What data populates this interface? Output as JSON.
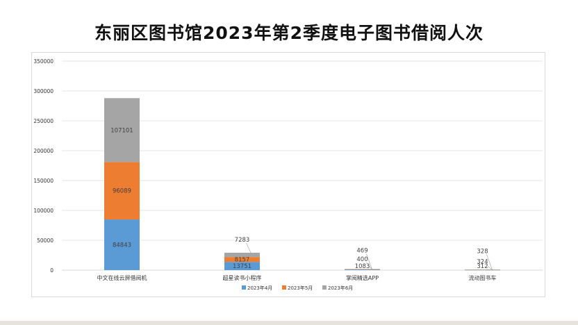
{
  "title": "东丽区图书馆2023年第2季度电子图书借阅人次",
  "chart_data": {
    "type": "bar",
    "stacked": true,
    "categories": [
      "中文在线云屏借阅机",
      "超星读书小程序",
      "掌阅精选APP",
      "流动图书车"
    ],
    "series": [
      {
        "name": "2023年4月",
        "color": "#5b9bd5",
        "values": [
          84843,
          13751,
          1083,
          312
        ]
      },
      {
        "name": "2023年5月",
        "color": "#ed7d31",
        "values": [
          96089,
          8157,
          400,
          324
        ]
      },
      {
        "name": "2023年6月",
        "color": "#a5a5a5",
        "values": [
          107101,
          7283,
          469,
          328
        ]
      }
    ],
    "ylim": [
      0,
      350000
    ],
    "yticks": [
      0,
      50000,
      100000,
      150000,
      200000,
      250000,
      300000,
      350000
    ],
    "grid": true,
    "legend": "bottom"
  },
  "colors": {
    "grid": "#e5e5e5",
    "axis_text": "#333333",
    "label_text": "#404040",
    "leader_line": "#a6a6a6"
  }
}
